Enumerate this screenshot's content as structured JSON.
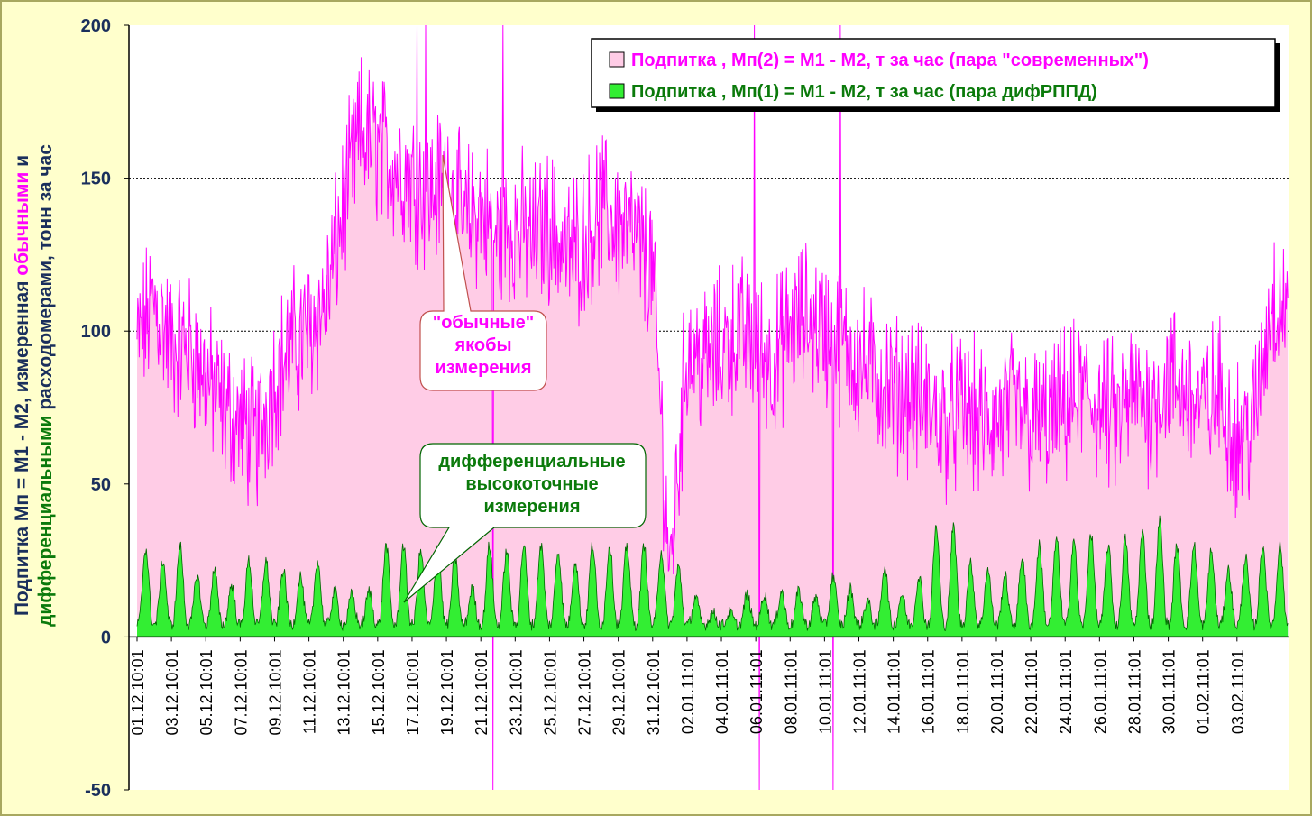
{
  "chart_data": {
    "type": "area",
    "ylim": [
      -50,
      200
    ],
    "yticks": [
      -50,
      0,
      50,
      100,
      150,
      200
    ],
    "gridlines_y": [
      100,
      150
    ],
    "x_tick_labels": [
      "01.12.10:01",
      "03.12.10:01",
      "05.12.10:01",
      "07.12.10:01",
      "09.12.10:01",
      "11.12.10:01",
      "13.12.10:01",
      "15.12.10:01",
      "17.12.10:01",
      "19.12.10:01",
      "21.12.10:01",
      "23.12.10:01",
      "25.12.10:01",
      "27.12.10:01",
      "29.12.10:01",
      "31.12.10:01",
      "02.01.11:01",
      "04.01.11:01",
      "06.01.11:01",
      "08.01.11:01",
      "10.01.11:01",
      "12.01.11:01",
      "14.01.11:01",
      "16.01.11:01",
      "18.01.11:01",
      "20.01.11:01",
      "22.01.11:01",
      "24.01.11:01",
      "26.01.11:01",
      "28.01.11:01",
      "30.01.11:01",
      "01.02.11:01",
      "03.02.11:01"
    ],
    "ylabel_line1_a": "Подпитка Мп = М1 - М2, измеренная ",
    "ylabel_line1_b": "обычными",
    "ylabel_line1_c": " и",
    "ylabel_line2_a": "дифференциальными",
    "ylabel_line2_b": " расходомерами, тонн за час",
    "series": [
      {
        "name": "Подпитка , Мп(2) = М1 - М2, т за час (пара \"современных\")",
        "fill": "#ffcce6",
        "line": "#ff00ff",
        "daily_levels": [
          95,
          110,
          95,
          95,
          85,
          75,
          70,
          65,
          85,
          95,
          100,
          110,
          140,
          165,
          160,
          155,
          150,
          145,
          150,
          135,
          140,
          130,
          135,
          130,
          135,
          125,
          130,
          140,
          135,
          130,
          120,
          20,
          95,
          90,
          95,
          100,
          95,
          90,
          100,
          105,
          100,
          95,
          90,
          85,
          80,
          80,
          75,
          70,
          75,
          70,
          70,
          75,
          70,
          70,
          75,
          80,
          75,
          70,
          80,
          75,
          85,
          80,
          75,
          80,
          65,
          70,
          110
        ],
        "spikes": [
          {
            "day": 16.3,
            "value": 200
          },
          {
            "day": 16.8,
            "value": 200
          },
          {
            "day": 20.7,
            "value": -50
          },
          {
            "day": 21.3,
            "value": 200
          },
          {
            "day": 35.9,
            "value": 200
          },
          {
            "day": 36.2,
            "value": -50
          },
          {
            "day": 40.5,
            "value": -50
          },
          {
            "day": 40.9,
            "value": 200
          }
        ]
      },
      {
        "name": "Подпитка , Мп(1) = М1 - М2, т за час (пара дифРППД)",
        "fill": "#33ee33",
        "line": "#006600",
        "daily_peaks": [
          29,
          25,
          30,
          20,
          22,
          17,
          25,
          25,
          22,
          20,
          25,
          15,
          14,
          15,
          30,
          30,
          28,
          30,
          26,
          16,
          30,
          28,
          30,
          30,
          28,
          25,
          30,
          30,
          30,
          30,
          28,
          23,
          13,
          8,
          8,
          14,
          14,
          15,
          15,
          13,
          20,
          16,
          12,
          23,
          14,
          20,
          36,
          36,
          24,
          22,
          20,
          26,
          30,
          32,
          32,
          34,
          30,
          32,
          34,
          38,
          30,
          30,
          28,
          22,
          26,
          30,
          30
        ],
        "daily_base": 4
      }
    ]
  },
  "callouts": {
    "pink": "\"обычные\"\nякобы\nизмерения",
    "green": "дифференциальные\nвысокоточные\nизмерения"
  },
  "colors": {
    "background": "#ffffcc",
    "plot_area": "#ffffff",
    "axis_text": "#1a2f5c",
    "magenta": "#ff00ff",
    "green_text": "#0b7a0b"
  }
}
